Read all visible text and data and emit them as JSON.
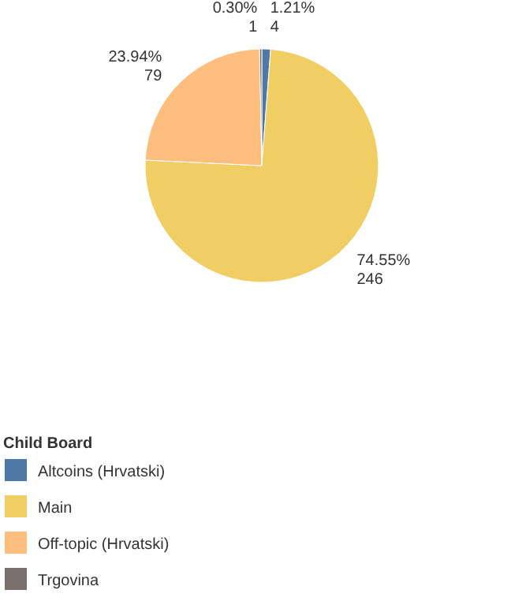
{
  "chart_data": {
    "type": "pie",
    "legend_title": "Child Board",
    "legend": "bottom left",
    "categories": [
      "Altcoins (Hrvatski)",
      "Main",
      "Off-topic (Hrvatski)",
      "Trgovina"
    ],
    "values": [
      4,
      246,
      79,
      1
    ],
    "colors": [
      "#4e79a7",
      "#f1ce63",
      "#ffbe7d",
      "#79706e"
    ],
    "value_labels": [
      "1.21%\n4",
      "74.55%\n246",
      "23.94%\n79",
      "0.30%\n1"
    ]
  }
}
